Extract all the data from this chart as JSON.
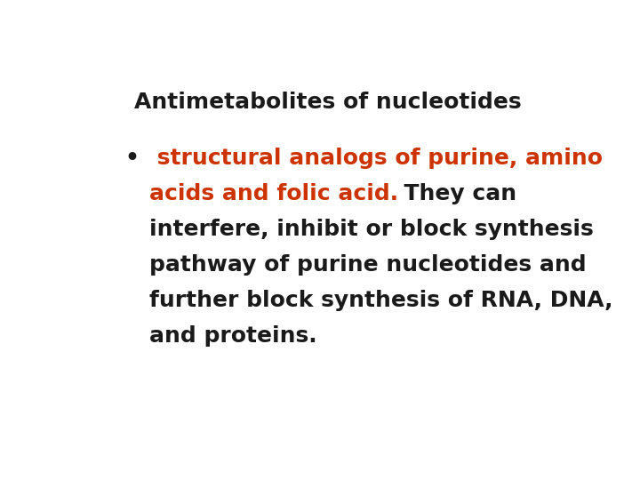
{
  "title": "Antimetabolites of nucleotides",
  "title_color": "#1a1a1a",
  "title_fontsize": 18,
  "background_color": "#ffffff",
  "bullet_symbol": "•",
  "bullet_fontsize": 18,
  "bullet_color": "#1a1a1a",
  "red_color": "#cc3300",
  "black_color": "#1a1a1a",
  "text_fontsize": 18,
  "font_weight": "bold",
  "line1_red": " structural analogs of purine, amino",
  "line2_red": "acids and folic acid.",
  "line2_black": "  They can",
  "line3": "interfere, inhibit or block synthesis",
  "line4": "pathway of purine nucleotides and",
  "line5": "further block synthesis of RNA, DNA,",
  "line6": "and proteins."
}
